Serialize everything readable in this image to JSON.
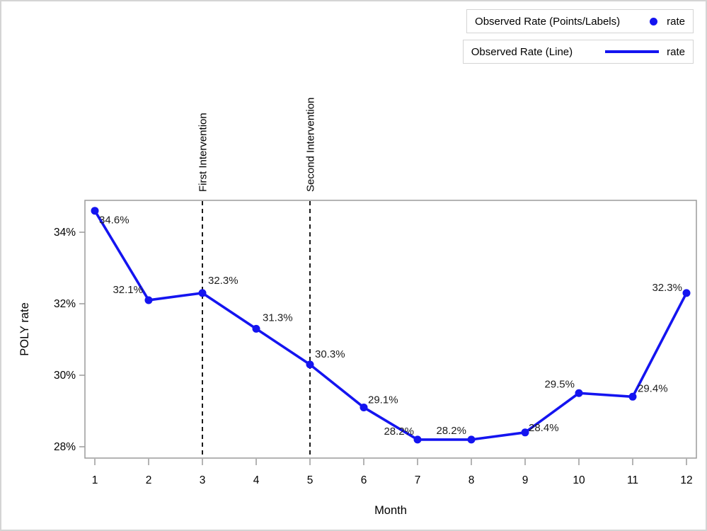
{
  "figure": {
    "background": "#ffffff",
    "border_color": "#d4d4d4"
  },
  "chart_data": {
    "type": "line",
    "title": "",
    "xlabel": "Month",
    "ylabel": "POLY rate",
    "x": [
      1,
      2,
      3,
      4,
      5,
      6,
      7,
      8,
      9,
      10,
      11,
      12
    ],
    "series": [
      {
        "name": "rate",
        "values": [
          34.6,
          32.1,
          32.3,
          31.3,
          30.3,
          29.1,
          28.2,
          28.2,
          28.4,
          29.5,
          29.4,
          32.3
        ]
      }
    ],
    "point_labels": [
      "34.6%",
      "32.1%",
      "32.3%",
      "31.3%",
      "30.3%",
      "29.1%",
      "28.2%",
      "28.2%",
      "28.4%",
      "29.5%",
      "29.4%",
      "32.3%"
    ],
    "xtick_labels": [
      "1",
      "2",
      "3",
      "4",
      "5",
      "6",
      "7",
      "8",
      "9",
      "10",
      "11",
      "12"
    ],
    "ytick_values": [
      28,
      30,
      32,
      34
    ],
    "ytick_labels": [
      "28%",
      "30%",
      "32%",
      "34%"
    ],
    "ylim": [
      27.6,
      34.95
    ],
    "grid": false,
    "reference_lines": [
      {
        "x": 3,
        "label": "First Intervention"
      },
      {
        "x": 5,
        "label": "Second Intervention"
      }
    ],
    "legend": {
      "position": "top-right",
      "entries": [
        {
          "title": "Observed Rate (Points/Labels)",
          "symbol": "point",
          "label": "rate"
        },
        {
          "title": "Observed Rate (Line)",
          "symbol": "line",
          "label": "rate"
        }
      ]
    },
    "colors": {
      "series": "#1414f0",
      "axis": "#9b9b9b",
      "text": "#000000",
      "data_label": "#1c1c1c",
      "reference_line": "#000000",
      "legend_border": "#d4d4d4"
    }
  }
}
